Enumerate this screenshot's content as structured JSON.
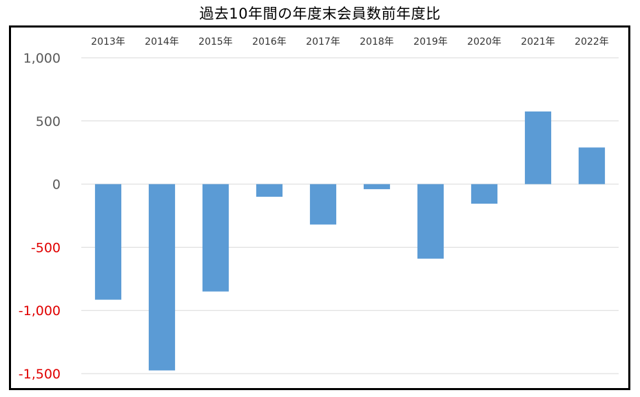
{
  "chart_data": {
    "type": "bar",
    "title": "過去10年間の年度末会員数前年度比",
    "xlabel": "",
    "ylabel": "",
    "categories": [
      "2013年",
      "2014年",
      "2015年",
      "2016年",
      "2017年",
      "2018年",
      "2019年",
      "2020年",
      "2021年",
      "2022年"
    ],
    "values": [
      -915,
      -1475,
      -850,
      -100,
      -320,
      -40,
      -590,
      -155,
      575,
      290
    ],
    "ylim": [
      -1500,
      1000
    ],
    "yticks": [
      1000,
      500,
      0,
      -500,
      -1000,
      -1500
    ],
    "ytick_labels": [
      "1,000",
      "500",
      "0",
      "-500",
      "-1,000",
      "-1,500"
    ],
    "x_axis_position": "top",
    "grid": true,
    "legend": "none",
    "colors": {
      "bar": "#5b9bd5",
      "positive_tick": "#595959",
      "negative_tick": "#e00000",
      "grid": "#d9d9d9"
    }
  }
}
